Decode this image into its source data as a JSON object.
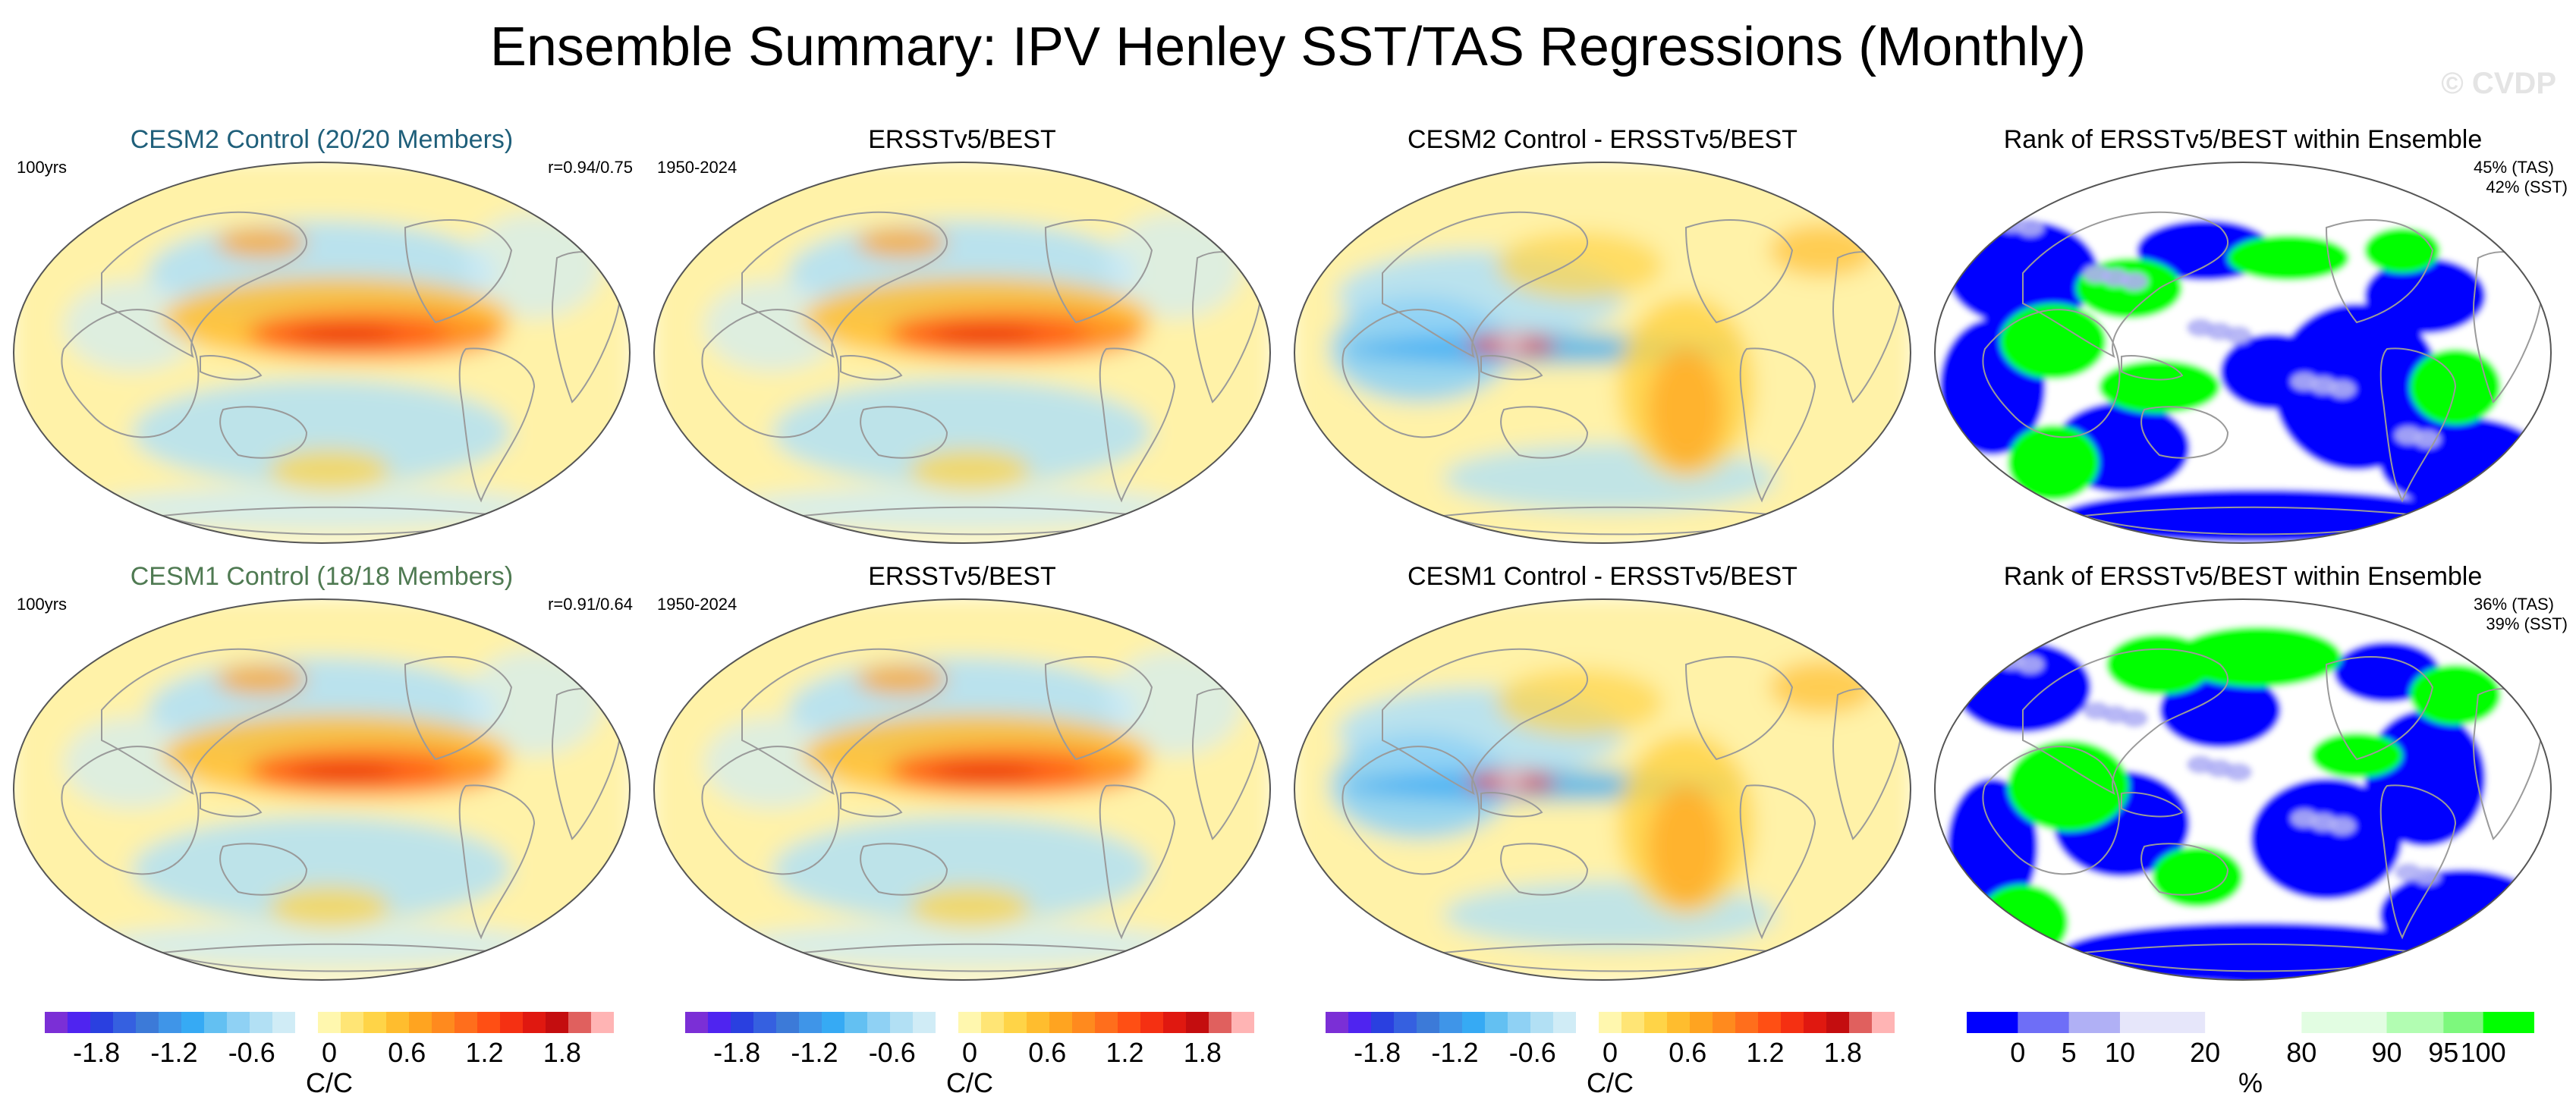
{
  "title": "Ensemble Summary: IPV Henley SST/TAS Regressions (Monthly)",
  "watermark": "© CVDP",
  "colors": {
    "title_cesm2": "#1f5f7a",
    "title_cesm1": "#4f7a52",
    "regression_scale": [
      "#7b2fd6",
      "#4f24f0",
      "#2a40e0",
      "#3560e0",
      "#3c7ad8",
      "#3f95e8",
      "#36aaf4",
      "#63c0f2",
      "#8fd1f4",
      "#b2e0f4",
      "#d0ecf6",
      "#ffffff",
      "#fff7ae",
      "#ffe575",
      "#ffd447",
      "#ffbd2e",
      "#ffa420",
      "#ff8a1e",
      "#ff6e1c",
      "#ff4f14",
      "#f53012",
      "#e01810",
      "#c40d0f",
      "#e0605e",
      "#ffb4b4"
    ],
    "rank_scale": [
      "#0000ff",
      "#6e6ef7",
      "#b0b0f5",
      "#e6e6fa",
      "#ffffff",
      "#e2fde2",
      "#b2fdb2",
      "#7df87d",
      "#00ff00"
    ]
  },
  "panels": [
    {
      "title": "CESM2 Control (20/20 Members)",
      "title_color": "title_cesm2",
      "left_note": "100yrs",
      "right_note": "r=0.94/0.75",
      "kind": "model"
    },
    {
      "title": "ERSSTv5/BEST",
      "title_color": "",
      "left_note": "1950-2024",
      "right_note": "",
      "kind": "obs"
    },
    {
      "title": "CESM2 Control - ERSSTv5/BEST",
      "title_color": "",
      "left_note": "",
      "right_note": "",
      "kind": "diff"
    },
    {
      "title": "Rank of ERSSTv5/BEST within Ensemble",
      "title_color": "",
      "left_note": "",
      "right_note": "45% (TAS)",
      "right_note2": "42% (SST)",
      "kind": "rank"
    },
    {
      "title": "CESM1 Control (18/18 Members)",
      "title_color": "title_cesm1",
      "left_note": "100yrs",
      "right_note": "r=0.91/0.64",
      "kind": "model"
    },
    {
      "title": "ERSSTv5/BEST",
      "title_color": "",
      "left_note": "1950-2024",
      "right_note": "",
      "kind": "obs"
    },
    {
      "title": "CESM1 Control - ERSSTv5/BEST",
      "title_color": "",
      "left_note": "",
      "right_note": "",
      "kind": "diff"
    },
    {
      "title": "Rank of ERSSTv5/BEST within Ensemble",
      "title_color": "",
      "left_note": "",
      "right_note": "36% (TAS)",
      "right_note2": "39% (SST)",
      "kind": "rank"
    }
  ],
  "chart_data": {
    "type": "heatmap",
    "title": "Ensemble Summary: IPV Henley SST/TAS Regressions (Monthly)",
    "projection": "global map (Robinson-like ellipse)",
    "regression_colorbar": {
      "unit": "C/C",
      "ticks": [
        "-1.8",
        "-1.2",
        "-0.6",
        "0",
        "0.6",
        "1.2",
        "1.8"
      ],
      "range": [
        -2.2,
        2.2
      ]
    },
    "rank_colorbar": {
      "unit": "%",
      "ticks": [
        "0",
        "5",
        "10",
        "20",
        "80",
        "90",
        "95",
        "100"
      ]
    },
    "panel_summaries": [
      {
        "panel": "CESM2 Control (20/20 Members)",
        "pattern_correlation": "0.94/0.75",
        "max_tropical_pacific_C_per_C": 1.6
      },
      {
        "panel": "CESM1 Control (18/18 Members)",
        "pattern_correlation": "0.91/0.64",
        "max_tropical_pacific_C_per_C": 1.6
      },
      {
        "panel": "Rank row 1",
        "TAS_percent": 45,
        "SST_percent": 42
      },
      {
        "panel": "Rank row 2",
        "TAS_percent": 36,
        "SST_percent": 39
      }
    ]
  }
}
